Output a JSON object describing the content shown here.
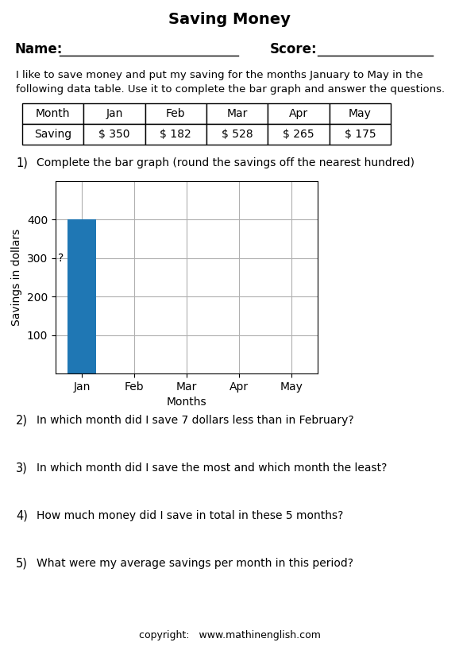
{
  "chart_data": {
    "type": "bar",
    "title": "Saving Money",
    "categories": [
      "Jan",
      "Feb",
      "Mar",
      "Apr",
      "May"
    ],
    "values": [
      400,
      null,
      null,
      null,
      null
    ],
    "xlabel": "Months",
    "ylabel": "Savings in dollars",
    "ylim": [
      0,
      500
    ],
    "yticks": [
      100,
      200,
      300,
      400
    ],
    "grid": true,
    "annotations": [
      {
        "text": "?",
        "y": 300
      }
    ]
  },
  "header_labels": [
    "Name:",
    "Score:"
  ],
  "intro": [
    "I like to save money and put my saving for the months January to May in the",
    "following data table. Use it to complete the bar graph and answer the questions."
  ],
  "table": {
    "header": [
      "Month",
      "Jan",
      "Feb",
      "Mar",
      "Apr",
      "May"
    ],
    "rows": [
      [
        "Saving",
        "$ 350",
        "$ 182",
        "$ 528",
        "$ 265",
        "$ 175"
      ]
    ]
  },
  "questions": [
    {
      "label": "1)",
      "text": "Complete the bar graph (round the savings off the nearest hundred)"
    },
    {
      "label": "2)",
      "text": "In which month did I save 7 dollars less than in February?"
    },
    {
      "label": "3)",
      "text": "In which month did I save the most and which month the least?"
    },
    {
      "label": "4)",
      "text": "How much money did I save in total in these 5 months?"
    },
    {
      "label": "5)",
      "text": "What were my average savings per month in this period?"
    }
  ],
  "footer": "copyright:   www.mathinenglish.com"
}
